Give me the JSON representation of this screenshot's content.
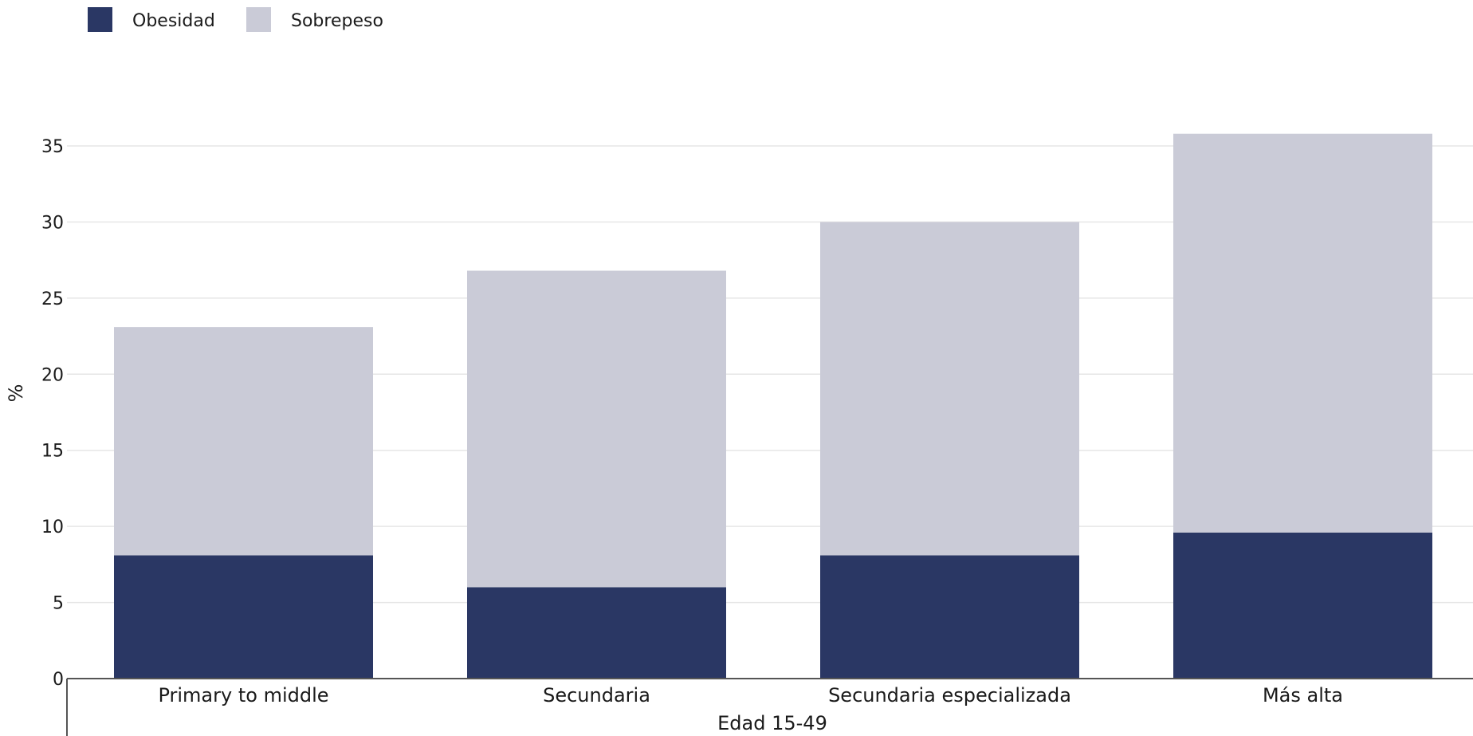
{
  "chart_data": {
    "type": "bar",
    "stacked": true,
    "categories": [
      "Primary to middle",
      "Secundaria",
      "Secundaria especializada",
      "Más alta"
    ],
    "group_label": "Edad 15-49",
    "ylabel": "%",
    "ylim": [
      0,
      37
    ],
    "yticks": [
      0,
      5,
      10,
      15,
      20,
      25,
      30,
      35
    ],
    "grid": true,
    "legend_position": "top-left",
    "series": [
      {
        "name": "Obesidad",
        "color": "#2a3764",
        "values": [
          8.1,
          6.0,
          8.1,
          9.6
        ]
      },
      {
        "name": "Sobrepeso",
        "color": "#cacbd7",
        "values": [
          15.0,
          20.8,
          21.9,
          26.2
        ]
      }
    ]
  }
}
